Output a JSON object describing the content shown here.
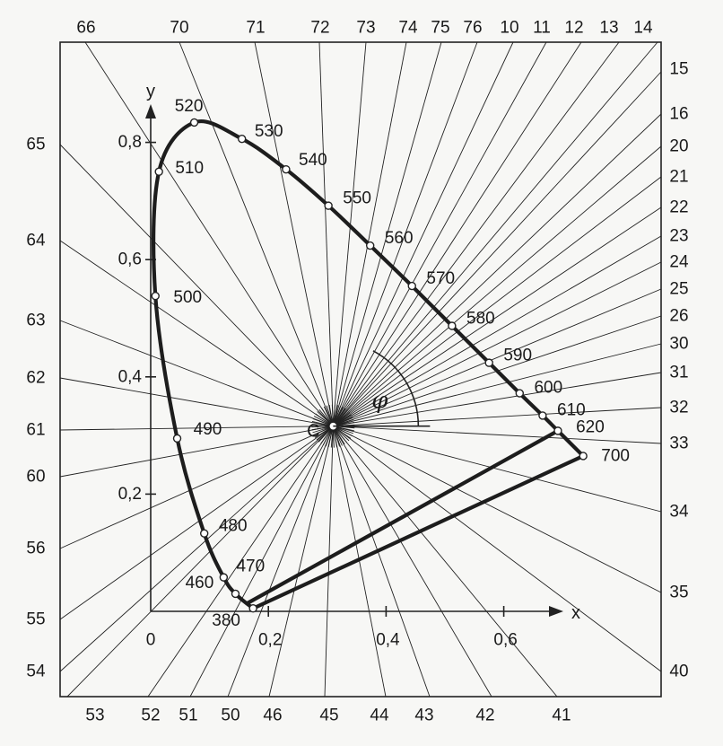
{
  "chart_data": {
    "type": "diagram",
    "axes": {
      "x_label": "x",
      "y_label": "y",
      "x_ticks": [
        "0",
        "0,2",
        "0,4",
        "0,6"
      ],
      "y_ticks": [
        "0,2",
        "0,4",
        "0,6",
        "0,8"
      ]
    },
    "white_point": {
      "label": "C",
      "x": 0.31,
      "y": 0.316
    },
    "angle_label": "φ",
    "locus_points": [
      {
        "nm": "380",
        "x": 0.174,
        "y": 0.005
      },
      {
        "nm": "460",
        "x": 0.144,
        "y": 0.03
      },
      {
        "nm": "470",
        "x": 0.124,
        "y": 0.058
      },
      {
        "nm": "480",
        "x": 0.091,
        "y": 0.133
      },
      {
        "nm": "490",
        "x": 0.045,
        "y": 0.295
      },
      {
        "nm": "500",
        "x": 0.008,
        "y": 0.538
      },
      {
        "nm": "510",
        "x": 0.014,
        "y": 0.75
      },
      {
        "nm": "520",
        "x": 0.074,
        "y": 0.834
      },
      {
        "nm": "530",
        "x": 0.155,
        "y": 0.806
      },
      {
        "nm": "540",
        "x": 0.23,
        "y": 0.754
      },
      {
        "nm": "550",
        "x": 0.302,
        "y": 0.692
      },
      {
        "nm": "560",
        "x": 0.373,
        "y": 0.624
      },
      {
        "nm": "570",
        "x": 0.444,
        "y": 0.555
      },
      {
        "nm": "580",
        "x": 0.512,
        "y": 0.487
      },
      {
        "nm": "590",
        "x": 0.575,
        "y": 0.424
      },
      {
        "nm": "600",
        "x": 0.627,
        "y": 0.372
      },
      {
        "nm": "610",
        "x": 0.666,
        "y": 0.334
      },
      {
        "nm": "620",
        "x": 0.692,
        "y": 0.308
      },
      {
        "nm": "700",
        "x": 0.735,
        "y": 0.265
      }
    ],
    "scale_numbers": {
      "top": [
        "66",
        "70",
        "71",
        "72",
        "73",
        "74",
        "75",
        "76",
        "10",
        "11",
        "12",
        "13",
        "14"
      ],
      "right": [
        "15",
        "16",
        "20",
        "21",
        "22",
        "23",
        "24",
        "25",
        "26",
        "30",
        "31",
        "32",
        "33",
        "34",
        "35",
        "40"
      ],
      "bottom": [
        "53",
        "52",
        "51",
        "50",
        "46",
        "45",
        "44",
        "43",
        "42",
        "41"
      ],
      "left": [
        "65",
        "64",
        "63",
        "62",
        "61",
        "60",
        "56",
        "55",
        "54"
      ]
    }
  }
}
